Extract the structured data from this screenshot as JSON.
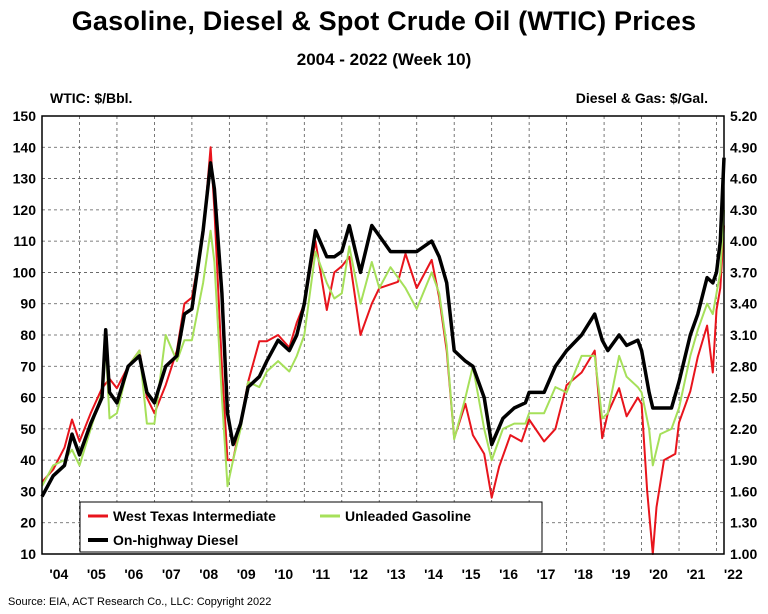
{
  "header": {
    "title": "Gasoline, Diesel & Spot Crude Oil (WTIC) Prices",
    "subtitle": "2004 - 2022 (Week 10)",
    "left_axis_title": "WTIC: $/Bbl.",
    "right_axis_title": "Diesel & Gas: $/Gal."
  },
  "source": "Source: EIA, ACT Research Co., LLC: Copyright 2022",
  "chart_data": {
    "type": "line",
    "title": "Gasoline, Diesel & Spot Crude Oil (WTIC) Prices",
    "subtitle": "2004 - 2022 (Week 10)",
    "ylabel_left": "WTIC: $/Bbl.",
    "ylabel_right": "Diesel & Gas: $/Gal.",
    "xlim": [
      2004,
      2022.2
    ],
    "ylim_left": [
      10,
      150
    ],
    "ylim_right": [
      1.0,
      5.2
    ],
    "grid": true,
    "legend_position": "bottom-left",
    "left_ticks": [
      "150",
      "140",
      "130",
      "120",
      "110",
      "100",
      "90",
      "80",
      "70",
      "60",
      "50",
      "40",
      "30",
      "20",
      "10"
    ],
    "right_ticks": [
      "5.20",
      "4.90",
      "4.60",
      "4.30",
      "4.00",
      "3.70",
      "3.40",
      "3.10",
      "2.80",
      "2.50",
      "2.20",
      "1.90",
      "1.60",
      "1.30",
      "1.00"
    ],
    "x_ticks": [
      "'04",
      "'05",
      "'06",
      "'07",
      "'08",
      "'09",
      "'10",
      "'11",
      "'12",
      "'13",
      "'14",
      "'15",
      "'16",
      "'17",
      "'18",
      "'19",
      "'20",
      "'21",
      "'22"
    ],
    "series": [
      {
        "name": "West Texas Intermediate",
        "axis": "left",
        "color": "#e8141c",
        "points": [
          [
            2004.0,
            33
          ],
          [
            2004.3,
            37
          ],
          [
            2004.6,
            44
          ],
          [
            2004.8,
            53
          ],
          [
            2005.0,
            46
          ],
          [
            2005.3,
            55
          ],
          [
            2005.6,
            63
          ],
          [
            2005.8,
            66
          ],
          [
            2006.0,
            63
          ],
          [
            2006.3,
            70
          ],
          [
            2006.6,
            75
          ],
          [
            2006.8,
            60
          ],
          [
            2007.0,
            55
          ],
          [
            2007.3,
            64
          ],
          [
            2007.6,
            75
          ],
          [
            2007.8,
            90
          ],
          [
            2008.0,
            92
          ],
          [
            2008.3,
            112
          ],
          [
            2008.5,
            140
          ],
          [
            2008.6,
            120
          ],
          [
            2008.8,
            70
          ],
          [
            2008.95,
            40
          ],
          [
            2009.1,
            40
          ],
          [
            2009.3,
            52
          ],
          [
            2009.5,
            65
          ],
          [
            2009.8,
            78
          ],
          [
            2010.0,
            78
          ],
          [
            2010.3,
            80
          ],
          [
            2010.6,
            76
          ],
          [
            2010.8,
            84
          ],
          [
            2011.0,
            90
          ],
          [
            2011.3,
            110
          ],
          [
            2011.6,
            88
          ],
          [
            2011.8,
            100
          ],
          [
            2012.0,
            102
          ],
          [
            2012.2,
            105
          ],
          [
            2012.5,
            80
          ],
          [
            2012.8,
            90
          ],
          [
            2013.0,
            95
          ],
          [
            2013.5,
            97
          ],
          [
            2013.7,
            106
          ],
          [
            2014.0,
            95
          ],
          [
            2014.4,
            104
          ],
          [
            2014.6,
            92
          ],
          [
            2014.8,
            75
          ],
          [
            2015.0,
            47
          ],
          [
            2015.3,
            58
          ],
          [
            2015.5,
            48
          ],
          [
            2015.8,
            42
          ],
          [
            2016.0,
            28
          ],
          [
            2016.2,
            38
          ],
          [
            2016.5,
            48
          ],
          [
            2016.8,
            46
          ],
          [
            2017.0,
            53
          ],
          [
            2017.4,
            46
          ],
          [
            2017.7,
            50
          ],
          [
            2018.0,
            64
          ],
          [
            2018.4,
            68
          ],
          [
            2018.75,
            75
          ],
          [
            2018.95,
            47
          ],
          [
            2019.1,
            55
          ],
          [
            2019.4,
            63
          ],
          [
            2019.6,
            54
          ],
          [
            2019.9,
            60
          ],
          [
            2020.0,
            58
          ],
          [
            2020.15,
            30
          ],
          [
            2020.3,
            10
          ],
          [
            2020.4,
            25
          ],
          [
            2020.6,
            40
          ],
          [
            2020.9,
            42
          ],
          [
            2021.0,
            52
          ],
          [
            2021.3,
            62
          ],
          [
            2021.5,
            73
          ],
          [
            2021.75,
            83
          ],
          [
            2021.9,
            68
          ],
          [
            2022.0,
            88
          ],
          [
            2022.1,
            95
          ],
          [
            2022.2,
            115
          ]
        ]
      },
      {
        "name": "Unleaded Gasoline",
        "axis": "right",
        "color": "#a6e05a",
        "points": [
          [
            2004.0,
            1.65
          ],
          [
            2004.3,
            1.85
          ],
          [
            2004.6,
            1.9
          ],
          [
            2004.8,
            2.0
          ],
          [
            2005.0,
            1.85
          ],
          [
            2005.3,
            2.2
          ],
          [
            2005.6,
            2.55
          ],
          [
            2005.7,
            3.0
          ],
          [
            2005.8,
            2.3
          ],
          [
            2006.0,
            2.35
          ],
          [
            2006.3,
            2.8
          ],
          [
            2006.6,
            2.95
          ],
          [
            2006.8,
            2.25
          ],
          [
            2007.0,
            2.25
          ],
          [
            2007.3,
            3.1
          ],
          [
            2007.6,
            2.85
          ],
          [
            2007.8,
            3.05
          ],
          [
            2008.0,
            3.05
          ],
          [
            2008.3,
            3.6
          ],
          [
            2008.5,
            4.1
          ],
          [
            2008.6,
            3.8
          ],
          [
            2008.8,
            2.5
          ],
          [
            2008.95,
            1.65
          ],
          [
            2009.1,
            1.9
          ],
          [
            2009.3,
            2.2
          ],
          [
            2009.5,
            2.65
          ],
          [
            2009.8,
            2.6
          ],
          [
            2010.0,
            2.75
          ],
          [
            2010.3,
            2.85
          ],
          [
            2010.6,
            2.75
          ],
          [
            2010.8,
            2.9
          ],
          [
            2011.0,
            3.1
          ],
          [
            2011.3,
            3.9
          ],
          [
            2011.6,
            3.6
          ],
          [
            2011.8,
            3.45
          ],
          [
            2012.0,
            3.5
          ],
          [
            2012.2,
            3.95
          ],
          [
            2012.5,
            3.4
          ],
          [
            2012.8,
            3.8
          ],
          [
            2013.0,
            3.55
          ],
          [
            2013.3,
            3.75
          ],
          [
            2013.7,
            3.55
          ],
          [
            2014.0,
            3.35
          ],
          [
            2014.4,
            3.7
          ],
          [
            2014.6,
            3.5
          ],
          [
            2014.8,
            3.0
          ],
          [
            2015.0,
            2.1
          ],
          [
            2015.3,
            2.5
          ],
          [
            2015.5,
            2.8
          ],
          [
            2015.8,
            2.2
          ],
          [
            2016.0,
            1.9
          ],
          [
            2016.3,
            2.2
          ],
          [
            2016.6,
            2.25
          ],
          [
            2016.9,
            2.25
          ],
          [
            2017.0,
            2.35
          ],
          [
            2017.4,
            2.35
          ],
          [
            2017.7,
            2.6
          ],
          [
            2018.0,
            2.55
          ],
          [
            2018.4,
            2.9
          ],
          [
            2018.75,
            2.9
          ],
          [
            2018.95,
            2.3
          ],
          [
            2019.1,
            2.35
          ],
          [
            2019.4,
            2.9
          ],
          [
            2019.6,
            2.7
          ],
          [
            2019.9,
            2.6
          ],
          [
            2020.0,
            2.55
          ],
          [
            2020.2,
            2.2
          ],
          [
            2020.3,
            1.85
          ],
          [
            2020.5,
            2.15
          ],
          [
            2020.8,
            2.2
          ],
          [
            2021.0,
            2.4
          ],
          [
            2021.3,
            2.9
          ],
          [
            2021.5,
            3.15
          ],
          [
            2021.75,
            3.4
          ],
          [
            2021.9,
            3.3
          ],
          [
            2022.0,
            3.5
          ],
          [
            2022.1,
            3.7
          ],
          [
            2022.2,
            4.3
          ]
        ]
      },
      {
        "name": "On-highway Diesel",
        "axis": "right",
        "color": "#000000",
        "points": [
          [
            2004.0,
            1.55
          ],
          [
            2004.3,
            1.75
          ],
          [
            2004.6,
            1.85
          ],
          [
            2004.8,
            2.15
          ],
          [
            2005.0,
            1.95
          ],
          [
            2005.3,
            2.25
          ],
          [
            2005.6,
            2.5
          ],
          [
            2005.7,
            3.15
          ],
          [
            2005.8,
            2.55
          ],
          [
            2006.0,
            2.45
          ],
          [
            2006.3,
            2.8
          ],
          [
            2006.6,
            2.9
          ],
          [
            2006.8,
            2.55
          ],
          [
            2007.0,
            2.45
          ],
          [
            2007.3,
            2.8
          ],
          [
            2007.6,
            2.9
          ],
          [
            2007.8,
            3.3
          ],
          [
            2008.0,
            3.35
          ],
          [
            2008.3,
            4.1
          ],
          [
            2008.5,
            4.75
          ],
          [
            2008.6,
            4.5
          ],
          [
            2008.8,
            3.5
          ],
          [
            2008.95,
            2.35
          ],
          [
            2009.1,
            2.05
          ],
          [
            2009.3,
            2.25
          ],
          [
            2009.5,
            2.6
          ],
          [
            2009.8,
            2.7
          ],
          [
            2010.0,
            2.85
          ],
          [
            2010.3,
            3.05
          ],
          [
            2010.6,
            2.95
          ],
          [
            2010.8,
            3.1
          ],
          [
            2011.0,
            3.4
          ],
          [
            2011.3,
            4.1
          ],
          [
            2011.6,
            3.85
          ],
          [
            2011.8,
            3.85
          ],
          [
            2012.0,
            3.9
          ],
          [
            2012.2,
            4.15
          ],
          [
            2012.5,
            3.7
          ],
          [
            2012.8,
            4.15
          ],
          [
            2013.0,
            4.05
          ],
          [
            2013.3,
            3.9
          ],
          [
            2013.7,
            3.9
          ],
          [
            2014.0,
            3.9
          ],
          [
            2014.4,
            4.0
          ],
          [
            2014.6,
            3.85
          ],
          [
            2014.8,
            3.6
          ],
          [
            2015.0,
            2.95
          ],
          [
            2015.3,
            2.85
          ],
          [
            2015.5,
            2.8
          ],
          [
            2015.8,
            2.5
          ],
          [
            2016.0,
            2.05
          ],
          [
            2016.3,
            2.3
          ],
          [
            2016.6,
            2.4
          ],
          [
            2016.9,
            2.45
          ],
          [
            2017.0,
            2.55
          ],
          [
            2017.4,
            2.55
          ],
          [
            2017.7,
            2.8
          ],
          [
            2018.0,
            2.95
          ],
          [
            2018.4,
            3.1
          ],
          [
            2018.75,
            3.3
          ],
          [
            2018.95,
            3.05
          ],
          [
            2019.1,
            2.95
          ],
          [
            2019.4,
            3.1
          ],
          [
            2019.6,
            3.0
          ],
          [
            2019.9,
            3.05
          ],
          [
            2020.0,
            2.95
          ],
          [
            2020.2,
            2.55
          ],
          [
            2020.3,
            2.4
          ],
          [
            2020.5,
            2.4
          ],
          [
            2020.8,
            2.4
          ],
          [
            2021.0,
            2.65
          ],
          [
            2021.3,
            3.1
          ],
          [
            2021.5,
            3.3
          ],
          [
            2021.75,
            3.65
          ],
          [
            2021.9,
            3.6
          ],
          [
            2022.0,
            3.7
          ],
          [
            2022.1,
            4.0
          ],
          [
            2022.2,
            4.8
          ]
        ]
      }
    ]
  },
  "legend": {
    "items": [
      "West Texas Intermediate",
      "Unleaded Gasoline",
      "On-highway Diesel"
    ]
  }
}
